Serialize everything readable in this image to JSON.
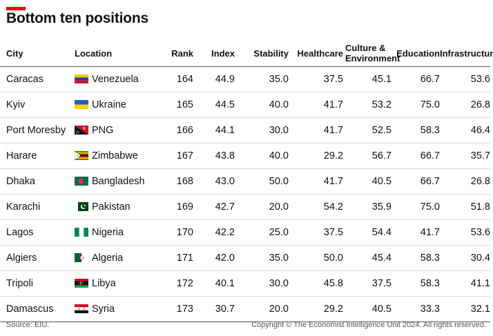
{
  "title": "Bottom ten positions",
  "footer": {
    "source": "Source: EIU.",
    "copyright": "Copyright © The Economist Intelligence Unit 2024. All rights reserved."
  },
  "colors": {
    "accent": "#e3120b",
    "rule": "#555555",
    "row_divider": "#d9d9d9"
  },
  "chart_data": {
    "type": "table",
    "title": "Bottom ten positions",
    "columns": [
      "City",
      "Location",
      "Rank",
      "Index",
      "Stability",
      "Healthcare",
      "Culture & Environment",
      "Education",
      "Infrastructure"
    ],
    "rows": [
      {
        "city": "Caracas",
        "location": "Venezuela",
        "flag": "venezuela-flag-icon",
        "rank": "164",
        "index": "44.9",
        "stability": "35.0",
        "healthcare": "37.5",
        "culture": "45.1",
        "education": "66.7",
        "infrastructure": "53.6"
      },
      {
        "city": "Kyiv",
        "location": "Ukraine",
        "flag": "ukraine-flag-icon",
        "rank": "165",
        "index": "44.5",
        "stability": "40.0",
        "healthcare": "41.7",
        "culture": "53.2",
        "education": "75.0",
        "infrastructure": "26.8"
      },
      {
        "city": "Port Moresby",
        "location": "PNG",
        "flag": "png-flag-icon",
        "rank": "166",
        "index": "44.1",
        "stability": "30.0",
        "healthcare": "41.7",
        "culture": "52.5",
        "education": "58.3",
        "infrastructure": "46.4"
      },
      {
        "city": "Harare",
        "location": "Zimbabwe",
        "flag": "zimbabwe-flag-icon",
        "rank": "167",
        "index": "43.8",
        "stability": "40.0",
        "healthcare": "29.2",
        "culture": "56.7",
        "education": "66.7",
        "infrastructure": "35.7"
      },
      {
        "city": "Dhaka",
        "location": "Bangladesh",
        "flag": "bangladesh-flag-icon",
        "rank": "168",
        "index": "43.0",
        "stability": "50.0",
        "healthcare": "41.7",
        "culture": "40.5",
        "education": "66.7",
        "infrastructure": "26.8"
      },
      {
        "city": "Karachi",
        "location": "Pakistan",
        "flag": "pakistan-flag-icon",
        "rank": "169",
        "index": "42.7",
        "stability": "20.0",
        "healthcare": "54.2",
        "culture": "35.9",
        "education": "75.0",
        "infrastructure": "51.8"
      },
      {
        "city": "Lagos",
        "location": "Nigeria",
        "flag": "nigeria-flag-icon",
        "rank": "170",
        "index": "42.2",
        "stability": "25.0",
        "healthcare": "37.5",
        "culture": "54.4",
        "education": "41.7",
        "infrastructure": "53.6"
      },
      {
        "city": "Algiers",
        "location": "Algeria",
        "flag": "algeria-flag-icon",
        "rank": "171",
        "index": "42.0",
        "stability": "35.0",
        "healthcare": "50.0",
        "culture": "45.4",
        "education": "58.3",
        "infrastructure": "30.4"
      },
      {
        "city": "Tripoli",
        "location": "Libya",
        "flag": "libya-flag-icon",
        "rank": "172",
        "index": "40.1",
        "stability": "30.0",
        "healthcare": "45.8",
        "culture": "37.5",
        "education": "58.3",
        "infrastructure": "41.1"
      },
      {
        "city": "Damascus",
        "location": "Syria",
        "flag": "syria-flag-icon",
        "rank": "173",
        "index": "30.7",
        "stability": "20.0",
        "healthcare": "29.2",
        "culture": "40.5",
        "education": "33.3",
        "infrastructure": "32.1"
      }
    ]
  }
}
